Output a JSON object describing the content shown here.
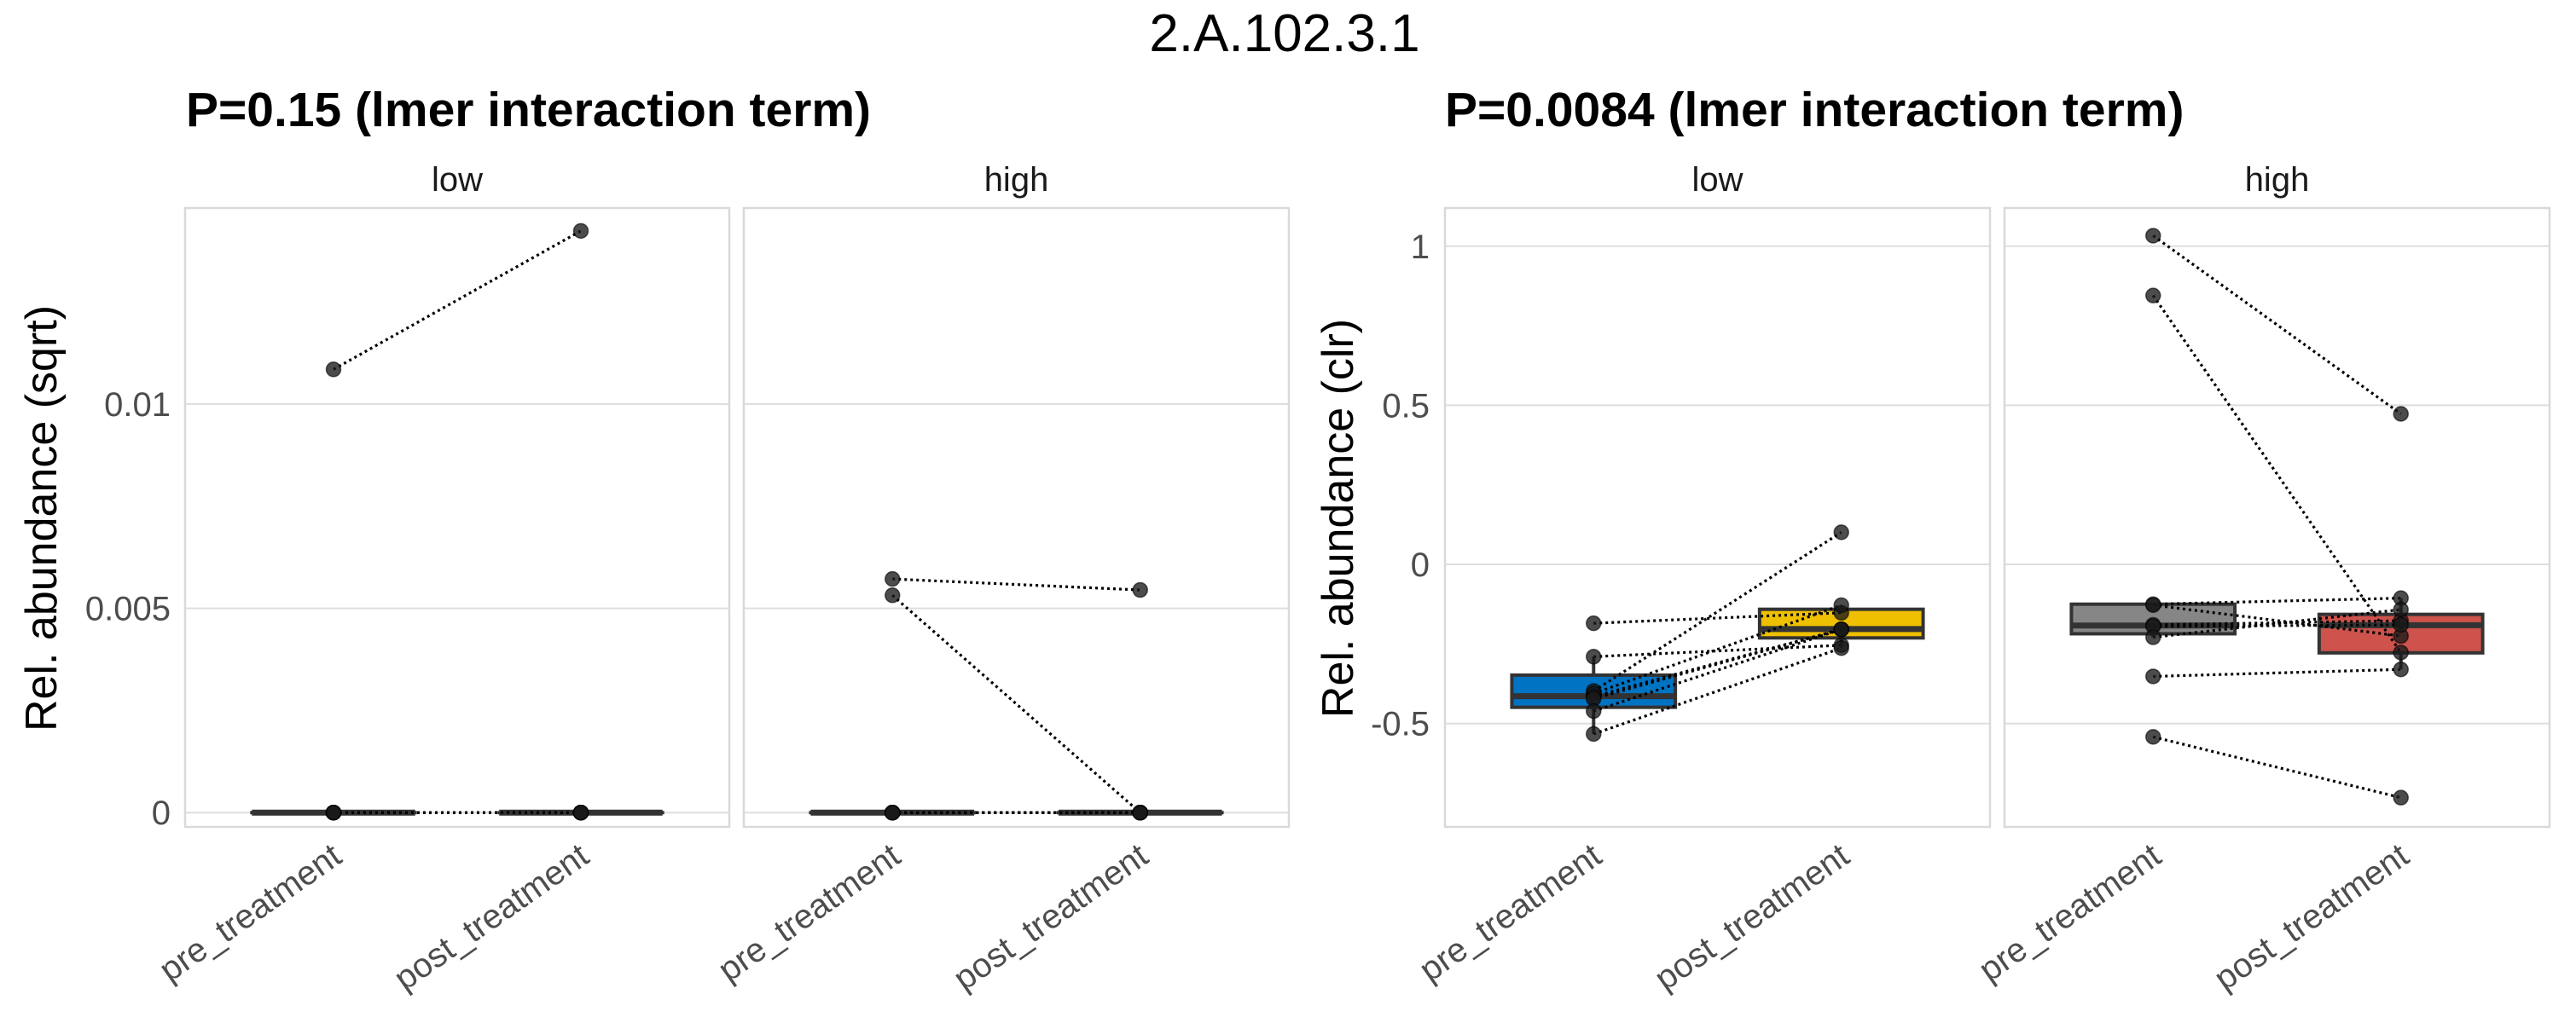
{
  "title": "2.A.102.3.1",
  "chart_data": [
    {
      "type": "boxplot-paired",
      "subtitle": "P=0.15 (lmer interaction term)",
      "ylabel": "Rel. abundance (sqrt)",
      "xlabel": "",
      "categories": [
        "pre_treatment",
        "post_treatment"
      ],
      "yticks": [
        0,
        0.005,
        0.01
      ],
      "ytick_labels": [
        "0",
        "0.005",
        "0.01"
      ],
      "ylim": [
        -0.00035,
        0.0148
      ],
      "grid": true,
      "colors": {
        "pre_treatment": "#868686",
        "post_treatment": "#868686"
      },
      "facets": [
        {
          "label": "low",
          "box": {
            "pre_treatment": {
              "q1": 0,
              "median": 0,
              "q3": 0,
              "whisker_low": 0,
              "whisker_high": 0
            },
            "post_treatment": {
              "q1": 0,
              "median": 0,
              "q3": 0,
              "whisker_low": 0,
              "whisker_high": 0
            }
          },
          "pairs": [
            {
              "pre": 0.01085,
              "post": 0.01424
            },
            {
              "pre": 0,
              "post": 0
            },
            {
              "pre": 0,
              "post": 0
            },
            {
              "pre": 0,
              "post": 0
            },
            {
              "pre": 0,
              "post": 0
            },
            {
              "pre": 0,
              "post": 0
            },
            {
              "pre": 0,
              "post": 0
            },
            {
              "pre": 0,
              "post": 0
            }
          ]
        },
        {
          "label": "high",
          "box": {
            "pre_treatment": {
              "q1": 0,
              "median": 0,
              "q3": 0,
              "whisker_low": 0,
              "whisker_high": 0
            },
            "post_treatment": {
              "q1": 0,
              "median": 0,
              "q3": 0,
              "whisker_low": 0,
              "whisker_high": 0
            }
          },
          "pairs": [
            {
              "pre": 0.00572,
              "post": 0.00545
            },
            {
              "pre": 0.00532,
              "post": 0
            },
            {
              "pre": 0,
              "post": 0
            },
            {
              "pre": 0,
              "post": 0
            },
            {
              "pre": 0,
              "post": 0
            },
            {
              "pre": 0,
              "post": 0
            },
            {
              "pre": 0,
              "post": 0
            },
            {
              "pre": 0,
              "post": 0
            },
            {
              "pre": 0,
              "post": 0
            }
          ]
        }
      ]
    },
    {
      "type": "boxplot-paired",
      "subtitle": "P=0.0084 (lmer interaction term)",
      "ylabel": "Rel. abundance (clr)",
      "xlabel": "",
      "categories": [
        "pre_treatment",
        "post_treatment"
      ],
      "yticks": [
        -0.5,
        0,
        0.5,
        1
      ],
      "ytick_labels": [
        "-0.5",
        "0",
        "0.5",
        "1"
      ],
      "ylim": [
        -0.825,
        1.12
      ],
      "grid": true,
      "facets": [
        {
          "label": "low",
          "colors": {
            "pre_treatment": "#0073C2",
            "post_treatment": "#EFC000"
          },
          "box": {
            "pre_treatment": {
              "q1": -0.449,
              "median": -0.414,
              "q3": -0.348,
              "whisker_low": -0.533,
              "whisker_high": -0.29
            },
            "post_treatment": {
              "q1": -0.231,
              "median": -0.203,
              "q3": -0.141,
              "whisker_low": -0.263,
              "whisker_high": -0.128
            }
          },
          "pairs": [
            {
              "pre": -0.185,
              "post": -0.152
            },
            {
              "pre": -0.29,
              "post": -0.254
            },
            {
              "pre": -0.398,
              "post": 0.101
            },
            {
              "pre": -0.406,
              "post": -0.128
            },
            {
              "pre": -0.415,
              "post": -0.204
            },
            {
              "pre": -0.422,
              "post": -0.204
            },
            {
              "pre": -0.461,
              "post": -0.204
            },
            {
              "pre": -0.533,
              "post": -0.263
            }
          ]
        },
        {
          "label": "high",
          "colors": {
            "pre_treatment": "#868686",
            "post_treatment": "#CD534C"
          },
          "box": {
            "pre_treatment": {
              "q1": -0.218,
              "median": -0.192,
              "q3": -0.125,
              "whisker_low": -0.229,
              "whisker_high": -0.125
            },
            "post_treatment": {
              "q1": -0.278,
              "median": -0.191,
              "q3": -0.157,
              "whisker_low": -0.33,
              "whisker_high": -0.106
            }
          },
          "pairs": [
            {
              "pre": 1.033,
              "post": 0.473
            },
            {
              "pre": 0.845,
              "post": -0.277
            },
            {
              "pre": -0.125,
              "post": -0.106
            },
            {
              "pre": -0.128,
              "post": -0.225
            },
            {
              "pre": -0.19,
              "post": -0.177
            },
            {
              "pre": -0.195,
              "post": -0.19
            },
            {
              "pre": -0.229,
              "post": -0.142
            },
            {
              "pre": -0.352,
              "post": -0.33
            },
            {
              "pre": -0.542,
              "post": -0.733
            }
          ]
        }
      ]
    }
  ]
}
